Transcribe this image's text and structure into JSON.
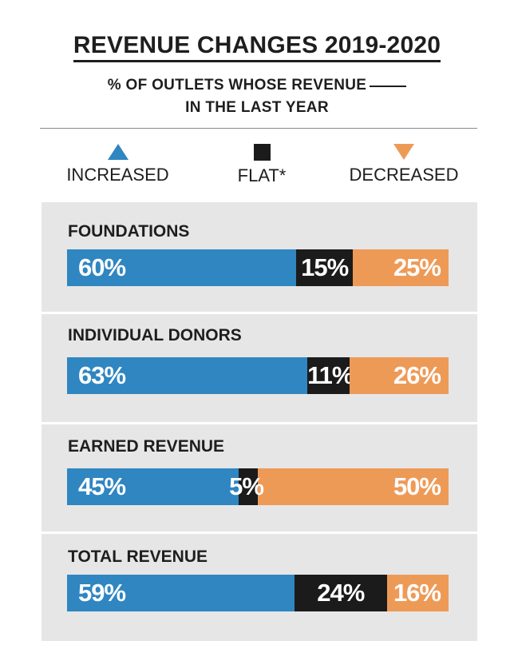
{
  "title": "REVENUE CHANGES 2019-2020",
  "subtitle_line1": "% OF OUTLETS WHOSE REVENUE",
  "subtitle_line2": "IN THE LAST YEAR",
  "legend": {
    "increased": "INCREASED",
    "flat": "FLAT*",
    "decreased": "DECREASED"
  },
  "colors": {
    "increased": "#2f86c1",
    "flat": "#1b1b1b",
    "decreased": "#ee9a57",
    "panel": "#e6e6e6"
  },
  "chart_data": {
    "type": "bar",
    "orientation": "horizontal",
    "stacked": true,
    "percent": true,
    "categories": [
      "FOUNDATIONS",
      "INDIVIDUAL DONORS",
      "EARNED REVENUE",
      "TOTAL REVENUE"
    ],
    "series": [
      {
        "name": "INCREASED",
        "values": [
          60,
          63,
          45,
          59
        ]
      },
      {
        "name": "FLAT*",
        "values": [
          15,
          11,
          5,
          24
        ]
      },
      {
        "name": "DECREASED",
        "values": [
          25,
          26,
          50,
          16
        ]
      }
    ],
    "labels": [
      [
        "60%",
        "15%",
        "25%"
      ],
      [
        "63%",
        "11%",
        "26%"
      ],
      [
        "45%",
        "5%",
        "50%"
      ],
      [
        "59%",
        "24%",
        "16%"
      ]
    ]
  }
}
